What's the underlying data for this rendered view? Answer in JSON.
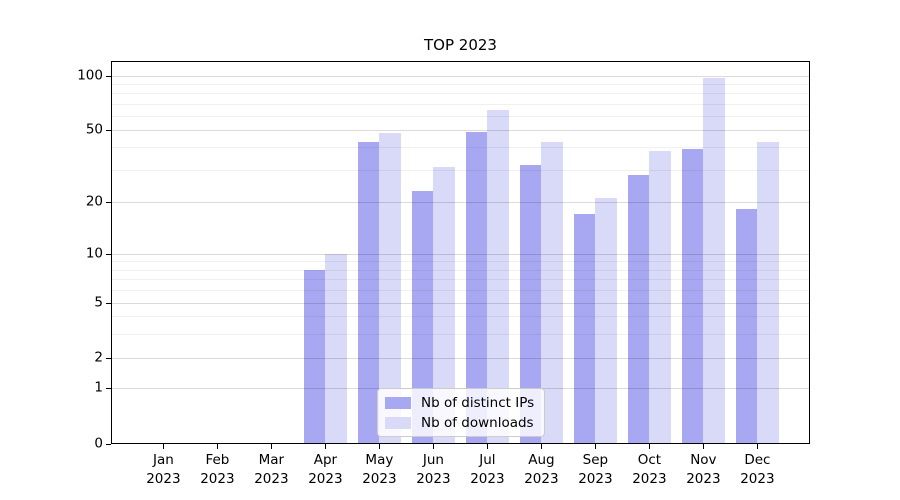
{
  "chart_data": {
    "type": "bar",
    "title": "TOP 2023",
    "categories": [
      "Jan",
      "Feb",
      "Mar",
      "Apr",
      "May",
      "Jun",
      "Jul",
      "Aug",
      "Sep",
      "Oct",
      "Nov",
      "Dec"
    ],
    "category_year_suffix": "2023",
    "series": [
      {
        "name": "Nb of distinct IPs",
        "color": "#a8a8f2",
        "values": [
          0,
          0,
          0,
          8,
          43,
          23,
          49,
          32,
          17,
          28,
          39,
          18
        ]
      },
      {
        "name": "Nb of downloads",
        "color": "#d9d9f8",
        "values": [
          0,
          0,
          0,
          10,
          48,
          31,
          65,
          43,
          21,
          38,
          98,
          43
        ]
      }
    ],
    "yscale": "symlog",
    "ytick_labels": [
      0,
      1,
      2,
      5,
      10,
      20,
      50,
      100
    ],
    "yminor_ticks": [
      3,
      4,
      6,
      7,
      8,
      9,
      30,
      40,
      60,
      70,
      80,
      90
    ],
    "ylim": [
      0,
      120
    ],
    "grid": true,
    "legend_position": "lower center"
  }
}
